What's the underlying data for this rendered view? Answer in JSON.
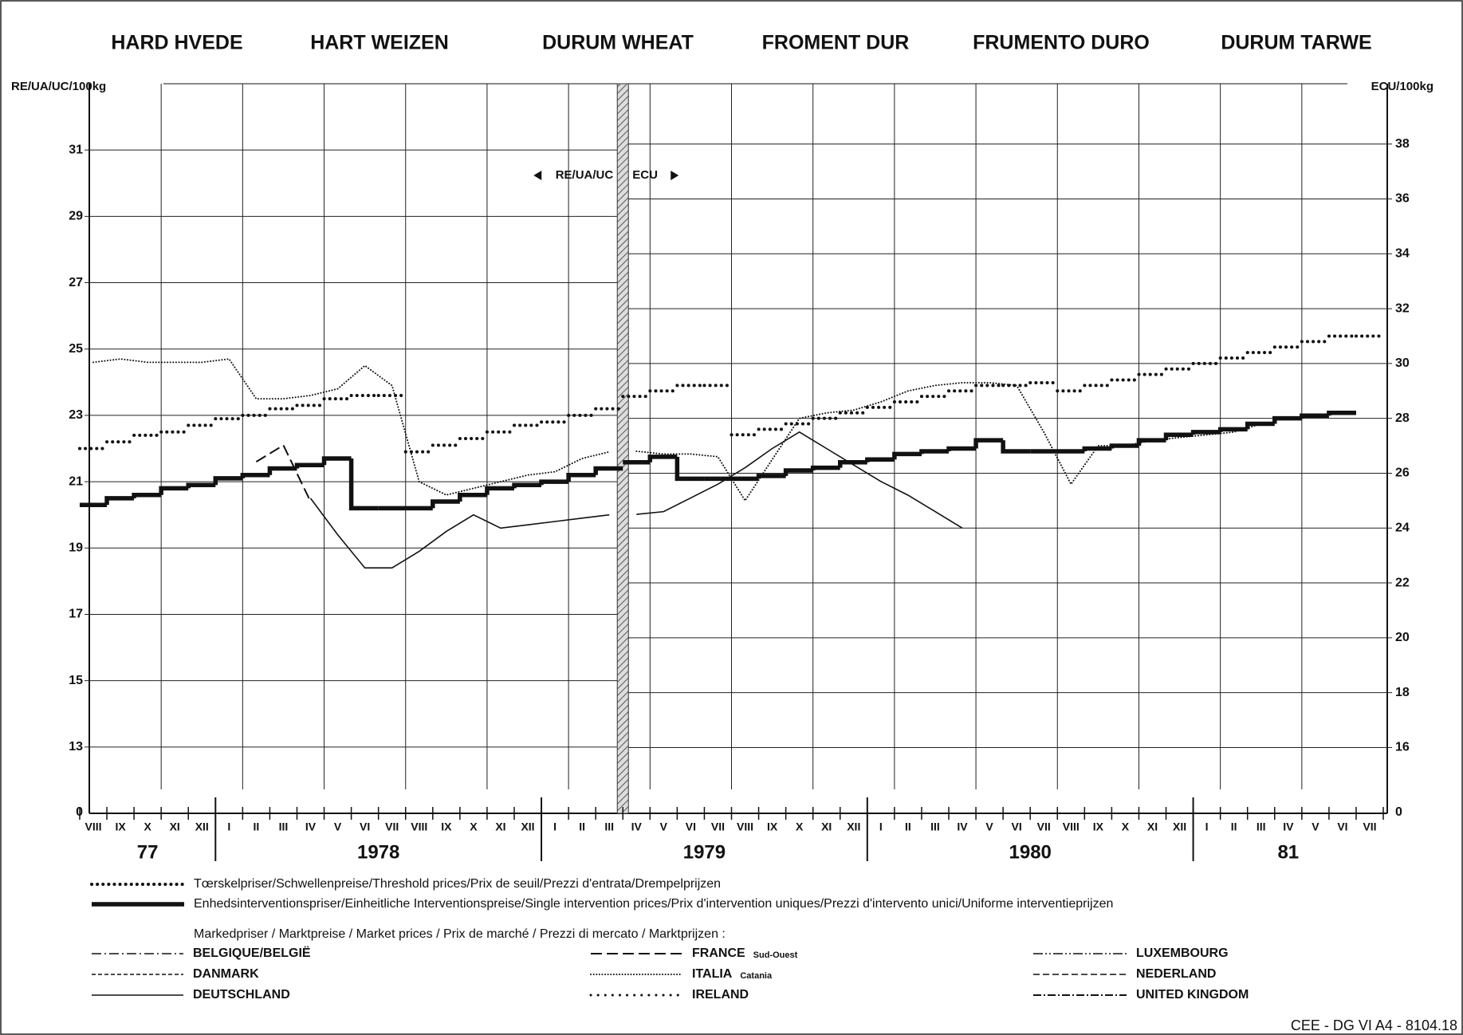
{
  "chart_data": {
    "type": "line",
    "titles": [
      "HARD HVEDE",
      "HART WEIZEN",
      "DURUM WHEAT",
      "FROMENT DUR",
      "FRUMENTO DURO",
      "DURUM TARWE"
    ],
    "y_label": "RE/UA/UC/100kg",
    "y2_label": "ECU/100kg",
    "currency_left": "RE/UA/UC",
    "currency_right": "ECU",
    "ylim": [
      11,
      33
    ],
    "yticks": [
      13,
      15,
      17,
      19,
      21,
      23,
      25,
      27,
      29,
      31
    ],
    "y_origin_label": 0,
    "y2lim": [
      13.6,
      40.2
    ],
    "y2ticks": [
      16,
      18,
      20,
      22,
      24,
      26,
      28,
      30,
      32,
      34,
      36,
      38
    ],
    "y2_origin_label": 0,
    "grid": true,
    "categories": [
      "VIII",
      "IX",
      "X",
      "XI",
      "XII",
      "I",
      "II",
      "III",
      "IV",
      "V",
      "VI",
      "VII",
      "VIII",
      "IX",
      "X",
      "XI",
      "XII",
      "I",
      "II",
      "III",
      "IV",
      "V",
      "VI",
      "VII",
      "VIII",
      "IX",
      "X",
      "XI",
      "XII",
      "I",
      "II",
      "III",
      "IV",
      "V",
      "VI",
      "VII",
      "VIII",
      "IX",
      "X",
      "XI",
      "XII",
      "I",
      "II",
      "III",
      "IV",
      "V",
      "VI",
      "VII"
    ],
    "year_labels": [
      "77",
      "1978",
      "1979",
      "1980",
      "81"
    ],
    "market_header": "Markedpriser / Marktpreise / Market prices / Prix de marché / Prezzi di mercato / Marktprijzen :",
    "series": [
      {
        "name": "Tœrskelpriser/Schwellenpreise/Threshold prices/Prix de seuil/Prezzi d'entrata/Drempelprijzen",
        "style": "threshold",
        "values": [
          22.0,
          22.2,
          22.4,
          22.5,
          22.7,
          22.9,
          23.0,
          23.2,
          23.3,
          23.5,
          23.6,
          23.6,
          21.9,
          22.1,
          22.3,
          22.5,
          22.7,
          22.8,
          23.0,
          23.2,
          null,
          null,
          null,
          null,
          null,
          null,
          null,
          null,
          null,
          null,
          null,
          null,
          null,
          null,
          null,
          null,
          null,
          null,
          null,
          null,
          null,
          null,
          null,
          null,
          null,
          null,
          null,
          null
        ]
      },
      {
        "name": "Enhedsinterventionspriser/Einheitliche Interventionspreise/Single intervention prices/Prix d'intervention uniques/Prezzi d'intervento unici/Uniforme interventieprijzen",
        "style": "intervention",
        "values": [
          20.3,
          20.5,
          20.6,
          20.8,
          20.9,
          21.1,
          21.2,
          21.4,
          21.5,
          21.7,
          20.2,
          20.2,
          20.2,
          20.4,
          20.6,
          20.8,
          20.9,
          21.0,
          21.2,
          21.4,
          null,
          null,
          null,
          null,
          null,
          null,
          null,
          null,
          null,
          null,
          null,
          null,
          null,
          null,
          null,
          null,
          null,
          null,
          null,
          null,
          null,
          null,
          null,
          null,
          null,
          null,
          null,
          null
        ]
      },
      {
        "name": "BELGIQUE/BELGIË",
        "style": "dashdot"
      },
      {
        "name": "FRANCE",
        "note": "Sud-Ouest",
        "style": "dashed",
        "values": [
          null,
          null,
          null,
          null,
          null,
          null,
          21.6,
          22.1,
          20.4,
          null,
          null,
          null,
          null,
          null,
          null,
          null,
          null,
          null,
          null,
          null,
          null,
          null,
          null,
          null,
          null,
          null,
          null,
          null,
          null,
          null,
          null,
          null,
          null,
          null,
          null,
          null,
          null,
          null,
          null,
          null,
          null,
          null,
          null,
          null,
          null,
          null,
          null,
          null
        ]
      },
      {
        "name": "LUXEMBOURG",
        "style": "dashdotdot"
      },
      {
        "name": "DANMARK",
        "style": "chevron"
      },
      {
        "name": "ITALIA",
        "note": "Catania",
        "style": "dotted",
        "values": [
          24.6,
          24.7,
          24.6,
          24.6,
          24.6,
          24.7,
          23.5,
          23.5,
          23.6,
          23.8,
          24.5,
          23.9,
          21.0,
          20.6,
          20.8,
          21.0,
          21.2,
          21.3,
          21.7,
          21.9,
          null,
          null,
          null,
          null,
          null,
          null,
          null,
          null,
          null,
          null,
          null,
          null,
          null,
          null,
          null,
          null,
          null,
          null,
          null,
          null,
          null,
          null,
          null,
          null,
          null,
          null,
          null,
          null
        ]
      },
      {
        "name": "NEDERLAND",
        "style": "dashed2"
      },
      {
        "name": "DEUTSCHLAND",
        "style": "solid",
        "values": [
          null,
          null,
          null,
          null,
          null,
          null,
          null,
          null,
          20.5,
          19.4,
          18.4,
          18.4,
          18.9,
          19.5,
          20.0,
          19.6,
          19.7,
          19.8,
          19.9,
          20.0,
          null,
          null,
          null,
          null,
          null,
          null,
          null,
          null,
          null,
          null,
          null,
          null,
          null,
          null,
          null,
          null,
          null,
          null,
          null,
          null,
          null,
          null,
          null,
          null,
          null,
          null,
          null,
          null
        ]
      },
      {
        "name": "IRELAND",
        "style": "plus"
      },
      {
        "name": "UNITED KINGDOM",
        "style": "dotline"
      },
      {
        "style": "threshold",
        "axis": "y2",
        "values": [
          null,
          null,
          null,
          null,
          null,
          null,
          null,
          null,
          null,
          null,
          null,
          null,
          null,
          null,
          null,
          null,
          null,
          null,
          null,
          null,
          28.8,
          29.0,
          29.2,
          29.2,
          27.4,
          27.6,
          27.8,
          28.0,
          28.2,
          28.4,
          28.6,
          28.8,
          29.0,
          29.2,
          29.2,
          29.3,
          29.0,
          29.2,
          29.4,
          29.6,
          29.8,
          30.0,
          30.2,
          30.4,
          30.6,
          30.8,
          31.0,
          31.0
        ]
      },
      {
        "style": "intervention",
        "axis": "y2",
        "values": [
          null,
          null,
          null,
          null,
          null,
          null,
          null,
          null,
          null,
          null,
          null,
          null,
          null,
          null,
          null,
          null,
          null,
          null,
          null,
          null,
          26.4,
          26.6,
          25.8,
          25.8,
          25.8,
          25.9,
          26.1,
          26.2,
          26.4,
          26.5,
          26.7,
          26.8,
          26.9,
          27.2,
          26.8,
          26.8,
          26.8,
          26.9,
          27.0,
          27.2,
          27.4,
          27.5,
          27.6,
          27.8,
          28.0,
          28.1,
          28.2,
          null
        ]
      },
      {
        "style": "dotted",
        "axis": "y2",
        "values": [
          null,
          null,
          null,
          null,
          null,
          null,
          null,
          null,
          null,
          null,
          null,
          null,
          null,
          null,
          null,
          null,
          null,
          null,
          null,
          null,
          26.8,
          26.7,
          26.7,
          26.6,
          25.0,
          26.5,
          28.0,
          28.2,
          28.3,
          28.6,
          29.0,
          29.2,
          29.3,
          29.3,
          29.2,
          27.5,
          25.6,
          27.0,
          27.0,
          27.2,
          27.3,
          27.4,
          27.5,
          27.8,
          null,
          null,
          null,
          null
        ]
      },
      {
        "style": "solid",
        "axis": "y2",
        "values": [
          null,
          null,
          null,
          null,
          null,
          null,
          null,
          null,
          null,
          null,
          null,
          null,
          null,
          null,
          null,
          null,
          null,
          null,
          null,
          null,
          24.5,
          24.6,
          25.1,
          25.6,
          26.2,
          26.9,
          27.5,
          26.9,
          26.3,
          25.7,
          25.2,
          24.6,
          24.0,
          null,
          null,
          null,
          null,
          null,
          null,
          null,
          null,
          null,
          null,
          null,
          null,
          null,
          null,
          null
        ]
      }
    ],
    "footer": "CEE - DG VI A4 - 8104.18"
  }
}
